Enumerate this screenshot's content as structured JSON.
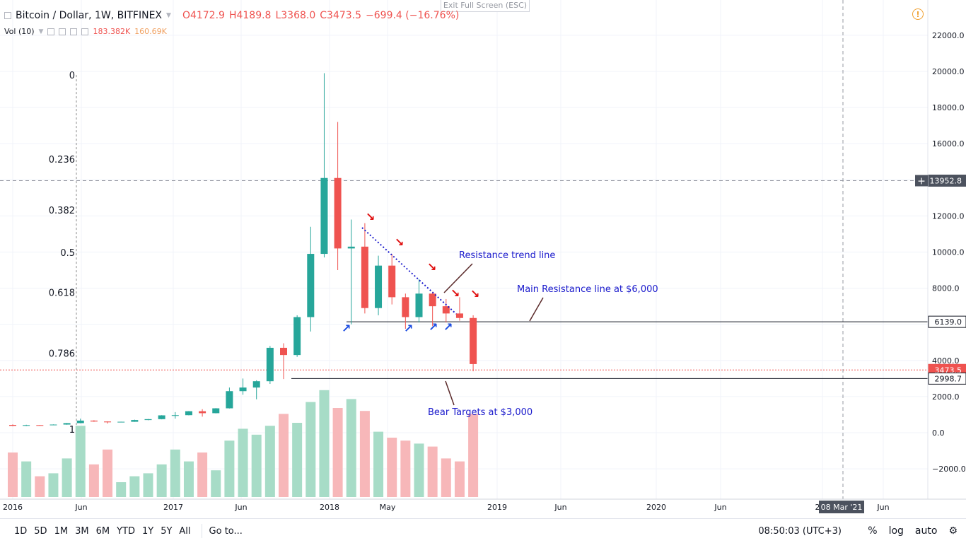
{
  "exit_fullscreen": "Exit Full Screen (ESC)",
  "legend": {
    "symbol": "Bitcoin / Dollar, 1W, BITFINEX",
    "open": "O4172.9",
    "high": "H4189.8",
    "low": "L3368.0",
    "close": "C3473.5",
    "change": "−699.4 (−16.76%)",
    "volume_label": "Vol (10)",
    "volume_value": "183.382K",
    "volume_ma": "160.69K"
  },
  "toolbar": {
    "timeframes": [
      "1D",
      "5D",
      "1M",
      "3M",
      "6M",
      "YTD",
      "1Y",
      "5Y",
      "All"
    ],
    "goto": "Go to...",
    "clock": "08:50:03 (UTC+3)",
    "percent": "%",
    "log": "log",
    "auto": "auto"
  },
  "colors": {
    "up": "#26a69a",
    "down": "#ef5350",
    "volume_up": "#a7dcc7",
    "volume_down": "#f7b7b9",
    "annotation_text": "#1a1acc",
    "arrow_red": "#e01010",
    "arrow_blue": "#1a4be0"
  },
  "chart_data": {
    "type": "candlestick",
    "x_ticks": [
      "2016",
      "Jun",
      "2017",
      "Jun",
      "2018",
      "May",
      "Jun",
      "2019",
      "Jun",
      "2020",
      "Jun",
      "202",
      "Jun"
    ],
    "y_ticks": [
      "22000.0",
      "20000.0",
      "18000.0",
      "16000.0",
      "14000.0",
      "12000.0",
      "10000.0",
      "8000.0",
      "6000.0",
      "4000.0",
      "2000.0",
      "0.0",
      "−2000.0"
    ],
    "ylim": [
      -3500,
      23500
    ],
    "price_labels": [
      {
        "text": "13952.8",
        "value": 13952.8,
        "style": "crosshair"
      },
      {
        "text": "6139.0",
        "value": 6139.0,
        "style": "line"
      },
      {
        "text": "3473.5",
        "value": 3473.5,
        "style": "last"
      },
      {
        "text": "2998.7",
        "value": 2998.7,
        "style": "line"
      }
    ],
    "crosshair_date": "08 Mar '21",
    "fibonacci": [
      {
        "label": "0",
        "value": 19800
      },
      {
        "label": "0.236",
        "value": 15150
      },
      {
        "label": "0.382",
        "value": 12330
      },
      {
        "label": "0.5",
        "value": 9990
      },
      {
        "label": "0.618",
        "value": 7770
      },
      {
        "label": "0.786",
        "value": 4400
      },
      {
        "label": "1",
        "value": 200
      }
    ],
    "annotations": [
      {
        "text": "Resistance trend line"
      },
      {
        "text": "Main Resistance line at $6,000"
      },
      {
        "text": "Bear Targets at $3,000"
      }
    ],
    "levels": [
      {
        "name": "main-resistance",
        "value": 6139
      },
      {
        "name": "bear-target",
        "value": 2998.7
      }
    ],
    "weeks": [
      {
        "date": "2016-01",
        "o": 430,
        "h": 460,
        "l": 360,
        "c": 380,
        "v": 1.5
      },
      {
        "date": "2016-02",
        "o": 380,
        "h": 440,
        "l": 370,
        "c": 420,
        "v": 1.2
      },
      {
        "date": "2016-03",
        "o": 420,
        "h": 425,
        "l": 405,
        "c": 415,
        "v": 0.7
      },
      {
        "date": "2016-04",
        "o": 415,
        "h": 460,
        "l": 410,
        "c": 450,
        "v": 0.8
      },
      {
        "date": "2016-05",
        "o": 450,
        "h": 540,
        "l": 440,
        "c": 530,
        "v": 1.3
      },
      {
        "date": "2016-06",
        "o": 530,
        "h": 780,
        "l": 520,
        "c": 670,
        "v": 2.4
      },
      {
        "date": "2016-07",
        "o": 670,
        "h": 690,
        "l": 600,
        "c": 620,
        "v": 1.1
      },
      {
        "date": "2016-08",
        "o": 620,
        "h": 630,
        "l": 510,
        "c": 575,
        "v": 1.6
      },
      {
        "date": "2016-09",
        "o": 575,
        "h": 610,
        "l": 570,
        "c": 605,
        "v": 0.5
      },
      {
        "date": "2016-10",
        "o": 605,
        "h": 720,
        "l": 600,
        "c": 700,
        "v": 0.7
      },
      {
        "date": "2016-11",
        "o": 700,
        "h": 760,
        "l": 690,
        "c": 750,
        "v": 0.8
      },
      {
        "date": "2016-12",
        "o": 750,
        "h": 970,
        "l": 740,
        "c": 960,
        "v": 1.1
      },
      {
        "date": "2017-01",
        "o": 960,
        "h": 1140,
        "l": 780,
        "c": 970,
        "v": 1.6
      },
      {
        "date": "2017-02",
        "o": 970,
        "h": 1200,
        "l": 960,
        "c": 1190,
        "v": 1.2
      },
      {
        "date": "2017-03",
        "o": 1190,
        "h": 1300,
        "l": 890,
        "c": 1080,
        "v": 1.5
      },
      {
        "date": "2017-04",
        "o": 1080,
        "h": 1360,
        "l": 1070,
        "c": 1350,
        "v": 0.9
      },
      {
        "date": "2017-05",
        "o": 1350,
        "h": 2500,
        "l": 1340,
        "c": 2300,
        "v": 1.9
      },
      {
        "date": "2017-06",
        "o": 2300,
        "h": 3000,
        "l": 2100,
        "c": 2500,
        "v": 2.3
      },
      {
        "date": "2017-07",
        "o": 2500,
        "h": 2900,
        "l": 1850,
        "c": 2850,
        "v": 2.1
      },
      {
        "date": "2017-08",
        "o": 2850,
        "h": 4800,
        "l": 2700,
        "c": 4700,
        "v": 2.4
      },
      {
        "date": "2017-09",
        "o": 4700,
        "h": 4950,
        "l": 2970,
        "c": 4300,
        "v": 2.8
      },
      {
        "date": "2017-10",
        "o": 4300,
        "h": 6500,
        "l": 4200,
        "c": 6400,
        "v": 2.5
      },
      {
        "date": "2017-11",
        "o": 6400,
        "h": 11400,
        "l": 5600,
        "c": 9900,
        "v": 3.2
      },
      {
        "date": "2017-12",
        "o": 9900,
        "h": 19900,
        "l": 9700,
        "c": 14100,
        "v": 3.6
      },
      {
        "date": "2018-01",
        "o": 14100,
        "h": 17200,
        "l": 9000,
        "c": 10200,
        "v": 3.0
      },
      {
        "date": "2018-02",
        "o": 10200,
        "h": 11800,
        "l": 6000,
        "c": 10300,
        "v": 3.3
      },
      {
        "date": "2018-03",
        "o": 10300,
        "h": 11600,
        "l": 6600,
        "c": 6900,
        "v": 2.9
      },
      {
        "date": "2018-04",
        "o": 6900,
        "h": 9800,
        "l": 6500,
        "c": 9250,
        "v": 2.2
      },
      {
        "date": "2018-05",
        "o": 9250,
        "h": 9900,
        "l": 7100,
        "c": 7500,
        "v": 2.0
      },
      {
        "date": "2018-06",
        "o": 7500,
        "h": 7700,
        "l": 5750,
        "c": 6400,
        "v": 1.9
      },
      {
        "date": "2018-07",
        "o": 6400,
        "h": 8500,
        "l": 6100,
        "c": 7700,
        "v": 1.8
      },
      {
        "date": "2018-08",
        "o": 7700,
        "h": 7800,
        "l": 5900,
        "c": 7000,
        "v": 1.7
      },
      {
        "date": "2018-09",
        "o": 7000,
        "h": 7400,
        "l": 6100,
        "c": 6600,
        "v": 1.3
      },
      {
        "date": "2018-10",
        "o": 6600,
        "h": 7500,
        "l": 6200,
        "c": 6350,
        "v": 1.2
      },
      {
        "date": "2018-11",
        "o": 6350,
        "h": 6500,
        "l": 3400,
        "c": 3800,
        "v": 2.8
      }
    ]
  }
}
